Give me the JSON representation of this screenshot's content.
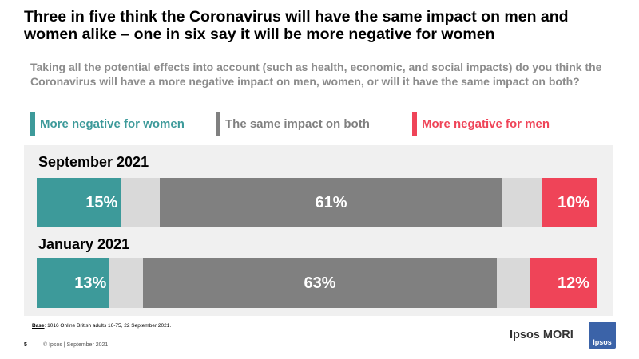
{
  "title": "Three in five think the Coronavirus  will have the same impact on men and women alike – one in six say it will be more negative for women",
  "question": "Taking all the potential effects into account (such as health, economic, and social impacts) do you think the Coronavirus will have a more negative impact on men, women, or will it have the same impact on both?",
  "colors": {
    "women": "#3d9a9a",
    "same": "#808080",
    "men": "#ef4458",
    "gap": "#d9d9d9",
    "panel": "#f0f0f0"
  },
  "chart_data": {
    "type": "bar",
    "orientation": "horizontal",
    "stacked": true,
    "categories": [
      "September 2021",
      "January 2021"
    ],
    "series": [
      {
        "name": "More negative for women",
        "values": [
          15,
          13
        ],
        "labels": [
          "15%",
          "13%"
        ]
      },
      {
        "name": "The same impact on both",
        "values": [
          61,
          63
        ],
        "labels": [
          "61%",
          "63%"
        ]
      },
      {
        "name": "More negative for men",
        "values": [
          10,
          12
        ],
        "labels": [
          "10%",
          "12%"
        ]
      }
    ],
    "xlim": [
      0,
      100
    ],
    "legend": "top"
  },
  "footnote": {
    "base_label": "Base",
    "base_text": ": 1016 Online British adults 16-75,  22 September 2021."
  },
  "footer": {
    "page_number": "5",
    "copyright": "© Ipsos | September 2021",
    "brand": "Ipsos MORI",
    "logo_text": "Ipsos"
  }
}
